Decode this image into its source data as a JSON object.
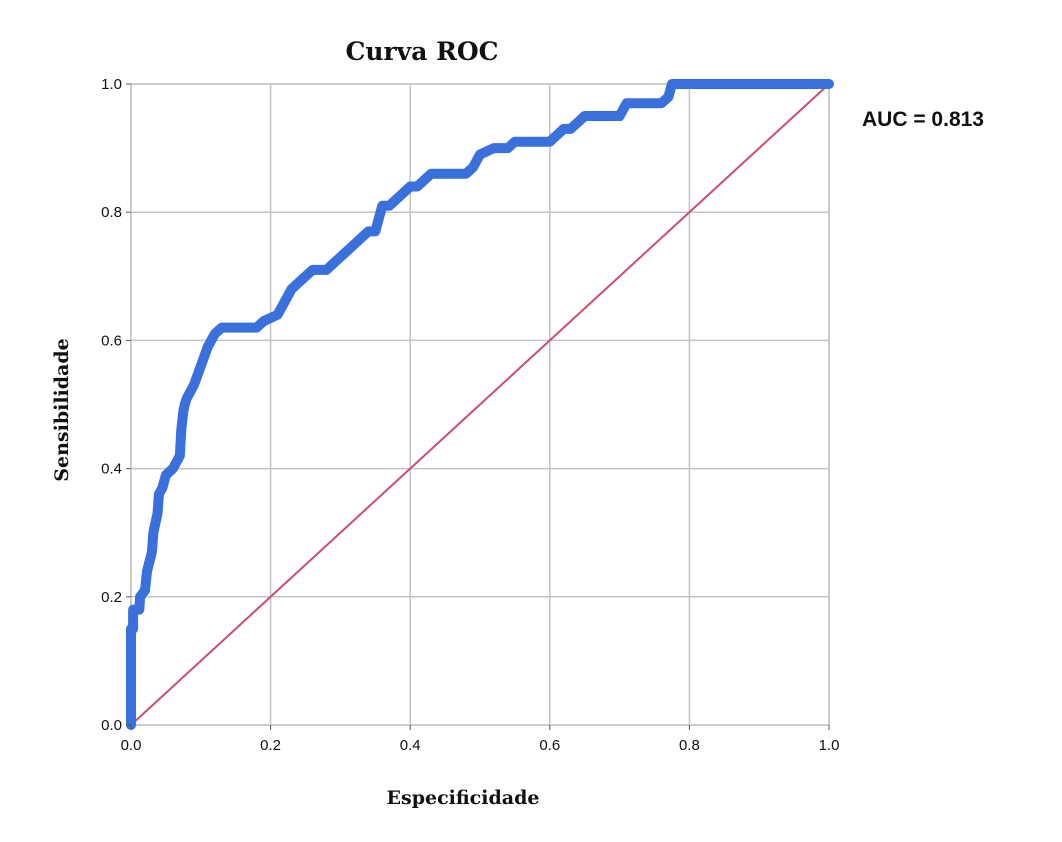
{
  "chart_data": {
    "type": "line",
    "title": "Curva ROC",
    "xlabel": "Especificidade",
    "ylabel": "Sensibilidade",
    "xlim": [
      0,
      1
    ],
    "ylim": [
      0,
      1
    ],
    "grid": true,
    "x_ticks": [
      "0.0",
      "0.2",
      "0.4",
      "0.6",
      "0.8",
      "1.0"
    ],
    "y_ticks": [
      "0.0",
      "0.2",
      "0.4",
      "0.6",
      "0.8",
      "1.0"
    ],
    "annotation": "AUC = 0.813",
    "colors": {
      "curve": "#3a70dc",
      "reference": "#c94f6d",
      "grid": "#c4c4c4",
      "frame": "#c4c4c4"
    },
    "series": [
      {
        "x": [
          0.0,
          0.0,
          0.003,
          0.003,
          0.012,
          0.013,
          0.02,
          0.023,
          0.03,
          0.032,
          0.038,
          0.04,
          0.045,
          0.05,
          0.06,
          0.07,
          0.072,
          0.075,
          0.077,
          0.08,
          0.09,
          0.1,
          0.11,
          0.12,
          0.13,
          0.18,
          0.19,
          0.21,
          0.22,
          0.23,
          0.25,
          0.26,
          0.28,
          0.29,
          0.3,
          0.31,
          0.32,
          0.33,
          0.34,
          0.35,
          0.36,
          0.37,
          0.38,
          0.4,
          0.41,
          0.42,
          0.43,
          0.44,
          0.48,
          0.49,
          0.5,
          0.52,
          0.54,
          0.55,
          0.6,
          0.61,
          0.62,
          0.63,
          0.64,
          0.65,
          0.66,
          0.7,
          0.71,
          0.76,
          0.77,
          0.775,
          0.8,
          1.0
        ],
        "y": [
          0.0,
          0.15,
          0.15,
          0.18,
          0.18,
          0.2,
          0.21,
          0.24,
          0.27,
          0.3,
          0.33,
          0.36,
          0.37,
          0.39,
          0.4,
          0.42,
          0.46,
          0.49,
          0.5,
          0.51,
          0.53,
          0.56,
          0.59,
          0.61,
          0.62,
          0.62,
          0.63,
          0.64,
          0.66,
          0.68,
          0.7,
          0.71,
          0.71,
          0.72,
          0.73,
          0.74,
          0.75,
          0.76,
          0.77,
          0.77,
          0.81,
          0.81,
          0.82,
          0.84,
          0.84,
          0.85,
          0.86,
          0.86,
          0.86,
          0.87,
          0.89,
          0.9,
          0.9,
          0.91,
          0.91,
          0.92,
          0.93,
          0.93,
          0.94,
          0.95,
          0.95,
          0.95,
          0.97,
          0.97,
          0.98,
          1.0,
          1.0,
          1.0
        ]
      },
      {
        "x": [
          0.0,
          1.0
        ],
        "y": [
          0.0,
          1.0
        ]
      }
    ]
  }
}
